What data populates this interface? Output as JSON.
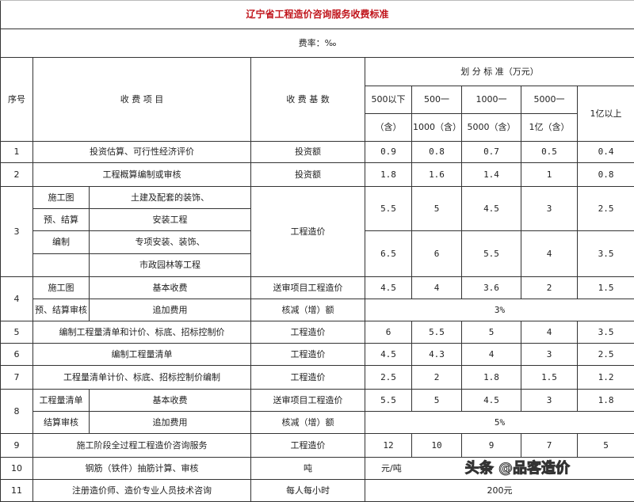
{
  "title": "辽宁省工程造价咨询服务收费标准",
  "rate_label": "费率：‰",
  "header": {
    "seq": "序号",
    "item": "收 费 项 目",
    "basis": "收 费 基 数",
    "range": "划 分 标 准（万元）",
    "cols_top": [
      "500以下",
      "500一",
      "1000一",
      "5000一"
    ],
    "cols_bottom": [
      "（含）",
      "1000（含）",
      "5000（含）",
      "1亿（含）"
    ],
    "col_last": "1亿以上"
  },
  "r1": {
    "no": "1",
    "item": "投资估算、可行性经济评价",
    "basis": "投资额",
    "v": [
      "0.9",
      "0.8",
      "0.7",
      "0.5",
      "0.4"
    ]
  },
  "r2": {
    "no": "2",
    "item": "工程概算编制或审核",
    "basis": "投资额",
    "v": [
      "1.8",
      "1.6",
      "1.4",
      "1",
      "0.8"
    ]
  },
  "r3": {
    "no": "3",
    "sub": [
      "施工图",
      "预、结算",
      "编制",
      ""
    ],
    "items": [
      "土建及配套的装饰、",
      "安装工程",
      "专项安装、装饰、",
      "市政园林等工程"
    ],
    "basis": "工程造价",
    "va": [
      "5.5",
      "5",
      "4.5",
      "3",
      "2.5"
    ],
    "vb": [
      "6.5",
      "6",
      "5.5",
      "4",
      "3.5"
    ]
  },
  "r4": {
    "no": "4",
    "sub": [
      "施工图",
      "预、结算审核"
    ],
    "items": [
      "基本收费",
      "追加费用"
    ],
    "basis": [
      "送审项目工程造价",
      "核减（增）额"
    ],
    "v": [
      "4.5",
      "4",
      "3.6",
      "2",
      "1.5"
    ],
    "extra": "3%"
  },
  "r5": {
    "no": "5",
    "item": "编制工程量清单和计价、标底、招标控制价",
    "basis": "工程造价",
    "v": [
      "6",
      "5.5",
      "5",
      "4",
      "3.5"
    ]
  },
  "r6": {
    "no": "6",
    "item": "编制工程量清单",
    "basis": "工程造价",
    "v": [
      "4.5",
      "4.3",
      "4",
      "3",
      "2.5"
    ]
  },
  "r7": {
    "no": "7",
    "item": "工程量清单计价、标底、招标控制价编制",
    "basis": "工程造价",
    "v": [
      "2.5",
      "2",
      "1.8",
      "1.5",
      "1.2"
    ]
  },
  "r8": {
    "no": "8",
    "sub": [
      "工程量清单",
      "结算审核"
    ],
    "items": [
      "基本收费",
      "追加费用"
    ],
    "basis": [
      "送审项目工程造价",
      "核减（增）额"
    ],
    "v": [
      "5.5",
      "5",
      "4.5",
      "3",
      "1.8"
    ],
    "extra": "5%"
  },
  "r9": {
    "no": "9",
    "item": "施工阶段全过程工程造价咨询服务",
    "basis": "工程造价",
    "v": [
      "12",
      "10",
      "9",
      "7",
      "5"
    ]
  },
  "r10": {
    "no": "10",
    "item": "钢筋（铁件）抽筋计算、审核",
    "basis": "吨",
    "value": "元/吨"
  },
  "r11": {
    "no": "11",
    "item": "注册造价师、造价专业人员技术咨询",
    "basis": "每人每小时",
    "value": "200元"
  },
  "watermark": "头条 @品客造价"
}
